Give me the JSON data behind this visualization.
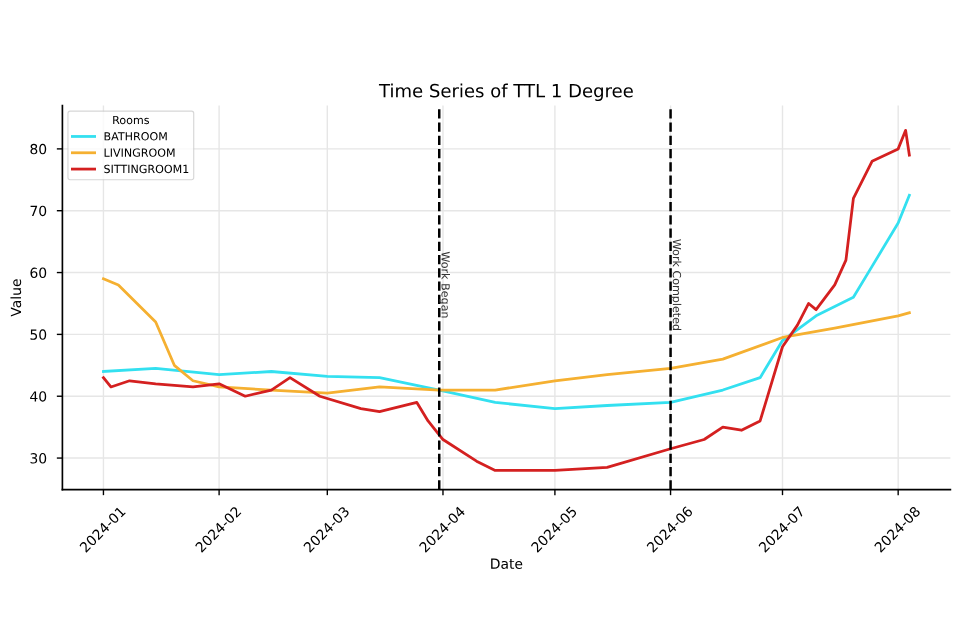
{
  "chart_data": {
    "type": "line",
    "title": "Time Series of TTL 1 Degree",
    "xlabel": "Date",
    "ylabel": "Value",
    "legend_title": "Rooms",
    "legend": "top left",
    "grid": true,
    "xlim": [
      "2023-12-21",
      "2024-08-15"
    ],
    "ylim": [
      24.9,
      87
    ],
    "xticks": [
      "2024-01",
      "2024-02",
      "2024-03",
      "2024-04",
      "2024-05",
      "2024-06",
      "2024-07",
      "2024-08"
    ],
    "yticks": [
      30,
      40,
      50,
      60,
      70,
      80
    ],
    "ref_lines": [
      {
        "axis": "x",
        "value": "2024-03-31",
        "label": "Work Began",
        "color": "#000000",
        "line_style": "dashed"
      },
      {
        "axis": "x",
        "value": "2024-06-01",
        "label": "Work Completed",
        "color": "#000000",
        "line_style": "dashed"
      }
    ],
    "series": [
      {
        "name": "BATHROOM",
        "color": "#33e0f0",
        "x": [
          "2024-01-01",
          "2024-01-15",
          "2024-02-01",
          "2024-02-15",
          "2024-03-01",
          "2024-03-15",
          "2024-03-31",
          "2024-04-15",
          "2024-05-01",
          "2024-05-15",
          "2024-06-01",
          "2024-06-15",
          "2024-06-25",
          "2024-07-01",
          "2024-07-10",
          "2024-07-20",
          "2024-07-25",
          "2024-08-01",
          "2024-08-04"
        ],
        "values": [
          44,
          44.5,
          43.5,
          44,
          43.2,
          43,
          41,
          39,
          38,
          38.5,
          39,
          41,
          43,
          49,
          53,
          56,
          61,
          68,
          72.5
        ]
      },
      {
        "name": "LIVINGROOM",
        "color": "#f5b031",
        "x": [
          "2024-01-01",
          "2024-01-05",
          "2024-01-10",
          "2024-01-15",
          "2024-01-20",
          "2024-01-25",
          "2024-02-01",
          "2024-02-15",
          "2024-03-01",
          "2024-03-15",
          "2024-03-31",
          "2024-04-15",
          "2024-05-01",
          "2024-05-15",
          "2024-06-01",
          "2024-06-15",
          "2024-07-01",
          "2024-07-15",
          "2024-08-01",
          "2024-08-04"
        ],
        "values": [
          59,
          58,
          55,
          52,
          45,
          42.5,
          41.5,
          41,
          40.5,
          41.5,
          41,
          41,
          42.5,
          43.5,
          44.5,
          46,
          49.5,
          51,
          53,
          53.5
        ]
      },
      {
        "name": "SITTINGROOM1",
        "color": "#d42020",
        "x": [
          "2024-01-01",
          "2024-01-03",
          "2024-01-08",
          "2024-01-15",
          "2024-01-25",
          "2024-02-01",
          "2024-02-08",
          "2024-02-15",
          "2024-02-20",
          "2024-02-28",
          "2024-03-10",
          "2024-03-15",
          "2024-03-25",
          "2024-03-28",
          "2024-04-01",
          "2024-04-10",
          "2024-04-15",
          "2024-05-01",
          "2024-05-15",
          "2024-06-01",
          "2024-06-10",
          "2024-06-15",
          "2024-06-20",
          "2024-06-25",
          "2024-07-01",
          "2024-07-05",
          "2024-07-08",
          "2024-07-10",
          "2024-07-15",
          "2024-07-18",
          "2024-07-20",
          "2024-07-25",
          "2024-08-01",
          "2024-08-03",
          "2024-08-04"
        ],
        "values": [
          43,
          41.5,
          42.5,
          42,
          41.5,
          42,
          40,
          41,
          43,
          40,
          38,
          37.5,
          39,
          36,
          33,
          29.5,
          28,
          28,
          28.5,
          31.5,
          33,
          35,
          34.5,
          36,
          48,
          51.5,
          55,
          54,
          58,
          62,
          72,
          78,
          80,
          83,
          79
        ]
      }
    ]
  }
}
